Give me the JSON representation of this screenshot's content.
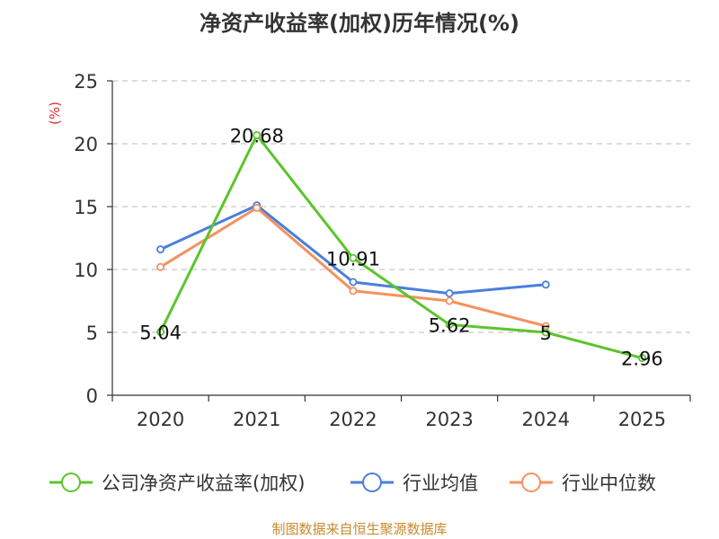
{
  "chart_data": {
    "type": "line",
    "title": "净资产收益率(加权)历年情况(%)",
    "ylabel": "(%)",
    "xlabel": "",
    "categories": [
      "2020",
      "2021",
      "2022",
      "2023",
      "2024",
      "2025"
    ],
    "ylim": [
      0,
      25
    ],
    "yticks": [
      0,
      5,
      10,
      15,
      20,
      25
    ],
    "grid": true,
    "legend_position": "bottom",
    "series": [
      {
        "name": "公司净资产收益率(加权)",
        "color": "#5cc42b",
        "values": [
          5.04,
          20.68,
          10.91,
          5.62,
          5,
          2.96
        ],
        "labels": [
          "5.04",
          "20.68",
          "10.91",
          "5.62",
          "5",
          "2.96"
        ]
      },
      {
        "name": "行业均值",
        "color": "#4a7fdc",
        "values": [
          11.6,
          15.1,
          9.0,
          8.1,
          8.8,
          null
        ]
      },
      {
        "name": "行业中位数",
        "color": "#f5915e",
        "values": [
          10.2,
          14.9,
          8.3,
          7.5,
          5.5,
          null
        ]
      }
    ]
  },
  "watermark": "制图数据来自恒生聚源数据库"
}
